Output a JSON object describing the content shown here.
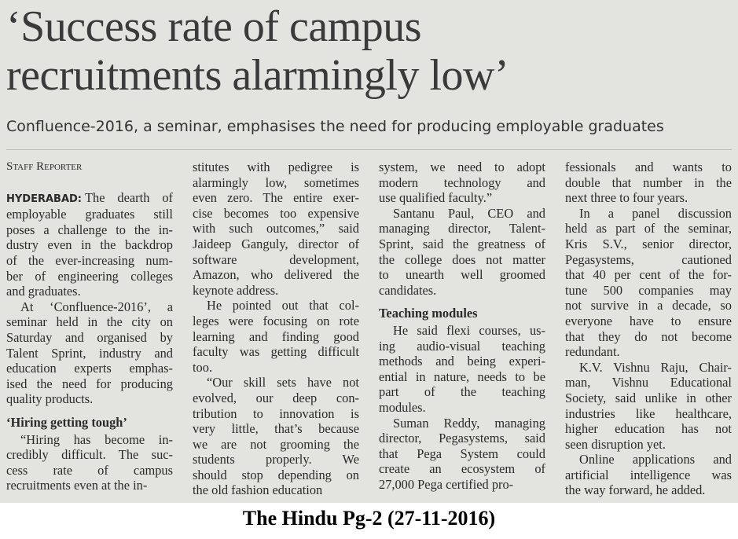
{
  "header": {
    "title_lines": [
      "‘Success rate of campus",
      "recruitments alarmingly low’"
    ],
    "subtitle": "Confluence-2016, a seminar, emphasises the need for producing employable graduates"
  },
  "columns": [
    {
      "blocks": [
        {
          "byline": "Staff Reporter"
        },
        {
          "dateline": "HYDERABAD:",
          "lines": [
            "The dearth of",
            "employable graduates still",
            "poses a challenge to the in-",
            "dustry even in the backdrop",
            "of the ever-increasing num-",
            "ber of engineering colleges",
            "and graduates."
          ]
        },
        {
          "lines": [
            "At ‘Confluence-2016’, a",
            "seminar held in the city on",
            "Saturday and organised by",
            "Talent Sprint, industry and",
            "education experts emphas-",
            "ised the need for producing",
            "quality products."
          ]
        },
        {
          "heading": "‘Hiring getting tough’"
        },
        {
          "lines": [
            "“Hiring has become in-",
            "credibly difficult. The suc-",
            "cess rate of campus",
            "recruitments even at the in-"
          ]
        }
      ]
    },
    {
      "blocks": [
        {
          "lines": [
            "stitutes with pedigree is",
            "alarmingly low, sometimes",
            "even zero. The entire exer-",
            "cise becomes too expensive",
            "with such outcomes,” said",
            "Jaideep Ganguly, director of",
            "software development,",
            "Amazon, who delivered the",
            "keynote address."
          ]
        },
        {
          "lines": [
            "He pointed out that col-",
            "leges were focusing on rote",
            "learning and finding good",
            "faculty was getting difficult",
            "too."
          ]
        },
        {
          "lines": [
            "“Our skill sets have not",
            "evolved, our deep con-",
            "tribution to innovation is",
            "very little, that’s because",
            "we are not grooming the",
            "students properly. We",
            "should stop depending on",
            "the old fashion education"
          ]
        }
      ]
    },
    {
      "blocks": [
        {
          "lines": [
            "system, we need to adopt",
            "modern technology and",
            "use qualified faculty.”"
          ]
        },
        {
          "lines": [
            "Santanu Paul, CEO and",
            "managing director, Talent-",
            "Sprint, said the greatness of",
            "the college does not matter",
            "to unearth well groomed",
            "candidates."
          ]
        },
        {
          "heading": "Teaching modules"
        },
        {
          "lines": [
            "He said flexi courses, us-",
            "ing audio-visual teaching",
            "methods and being experi-",
            "ential in nature, needs to be",
            "part of the teaching",
            "modules."
          ]
        },
        {
          "lines": [
            "Suman Reddy, managing",
            "director, Pegasystems, said",
            "that Pega System could",
            "create an ecosystem of",
            "27,000 Pega certified pro-"
          ]
        }
      ]
    },
    {
      "blocks": [
        {
          "lines": [
            "fessionals and wants to",
            "double that number in the",
            "next three to four years."
          ]
        },
        {
          "lines": [
            "In a panel discussion",
            "held as part of the seminar,",
            "Kris S.V., senior director,",
            "Pegasystems, cautioned",
            "that 40 per cent of the for-",
            "tune 500 companies may",
            "not survive in a decade, so",
            "everyone have to ensure",
            "that they do not become",
            "redundant."
          ]
        },
        {
          "lines": [
            "K.V. Vishnu Raju, Chair-",
            "man, Vishnu Educational",
            "Society, said unlike in other",
            "industries like healthcare,",
            "higher education has not",
            "seen disruption yet."
          ]
        },
        {
          "lines": [
            "Online applications and",
            "artificial intelligence was",
            "the way forward, he added."
          ]
        }
      ]
    }
  ],
  "caption": "The Hindu Pg-2 (27-11-2016)"
}
